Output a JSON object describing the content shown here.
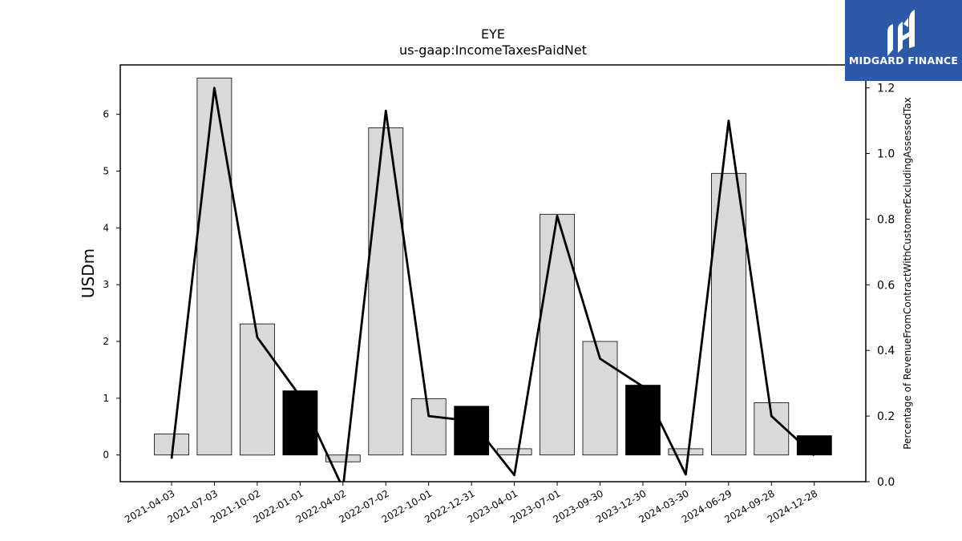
{
  "chart_data": {
    "type": "bar",
    "title": "EYE",
    "subtitle": "us-gaap:IncomeTaxesPaidNet",
    "ylabel": "USDm",
    "y2label": "Percentage of RevenueFromContractWithCustomerExcludingAssessedTax",
    "categories": [
      "2021-04-03",
      "2021-07-03",
      "2021-10-02",
      "2022-01-01",
      "2022-04-02",
      "2022-07-02",
      "2022-10-01",
      "2022-12-31",
      "2023-04-01",
      "2023-07-01",
      "2023-09-30",
      "2023-12-30",
      "2024-03-30",
      "2024-06-29",
      "2024-09-28",
      "2024-12-28"
    ],
    "series": [
      {
        "axis": "left",
        "type": "bar",
        "values": [
          0.37,
          6.64,
          2.31,
          1.13,
          -0.12,
          5.76,
          0.99,
          0.86,
          0.11,
          4.24,
          2.0,
          1.23,
          0.11,
          4.96,
          0.92,
          0.34
        ],
        "highlighted": [
          false,
          false,
          false,
          true,
          false,
          false,
          false,
          true,
          false,
          false,
          false,
          true,
          false,
          false,
          false,
          true
        ]
      },
      {
        "axis": "right",
        "type": "line",
        "values": [
          0.07,
          1.2,
          0.44,
          0.26,
          -0.02,
          1.13,
          0.2,
          0.185,
          0.02,
          0.81,
          0.375,
          0.29,
          0.022,
          1.1,
          0.2,
          0.08
        ]
      }
    ],
    "ylim": [
      -0.47,
      6.87
    ],
    "y2lim": [
      0.0,
      1.27
    ],
    "yticks": [
      0,
      1,
      2,
      3,
      4,
      5,
      6
    ],
    "y2ticks": [
      "0.0",
      "0.2",
      "0.4",
      "0.6",
      "0.8",
      "1.0",
      "1.2"
    ],
    "grid": false,
    "colors": {
      "bar": "#d9d9d9",
      "bar_highlight": "#000000",
      "line": "#000000"
    }
  },
  "logo": {
    "text": "MIDGARD FINANCE",
    "background": "#2d5aa8"
  }
}
